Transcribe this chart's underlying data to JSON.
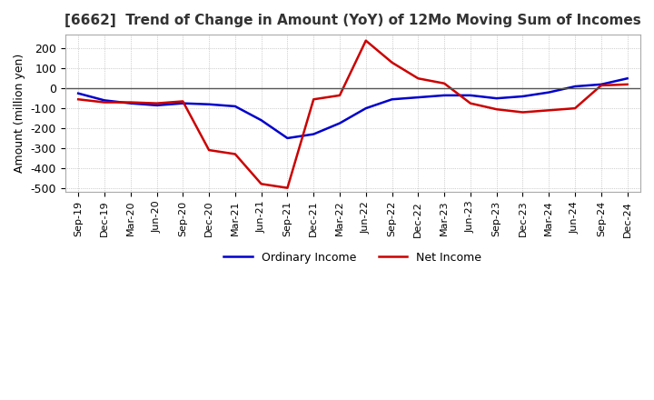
{
  "title": "[6662]  Trend of Change in Amount (YoY) of 12Mo Moving Sum of Incomes",
  "ylabel": "Amount (million yen)",
  "ylim": [
    -520,
    270
  ],
  "yticks": [
    -500,
    -400,
    -300,
    -200,
    -100,
    0,
    100,
    200
  ],
  "background_color": "#ffffff",
  "grid_color": "#aaaaaa",
  "title_fontsize": 11,
  "labels": [
    "Ordinary Income",
    "Net Income"
  ],
  "line_colors": [
    "#0000cc",
    "#cc0000"
  ],
  "x_labels": [
    "Sep-19",
    "Dec-19",
    "Mar-20",
    "Jun-20",
    "Sep-20",
    "Dec-20",
    "Mar-21",
    "Jun-21",
    "Sep-21",
    "Dec-21",
    "Mar-22",
    "Jun-22",
    "Sep-22",
    "Dec-22",
    "Mar-23",
    "Jun-23",
    "Sep-23",
    "Dec-23",
    "Mar-24",
    "Jun-24",
    "Sep-24",
    "Dec-24"
  ],
  "ordinary_income": [
    -25,
    -60,
    -75,
    -85,
    -75,
    -80,
    -90,
    -160,
    -250,
    -230,
    -175,
    -100,
    -55,
    -45,
    -35,
    -35,
    -50,
    -40,
    -20,
    10,
    20,
    50
  ],
  "net_income": [
    -55,
    -70,
    -70,
    -75,
    -65,
    -310,
    -330,
    -480,
    -500,
    -55,
    -35,
    240,
    130,
    50,
    25,
    -75,
    -105,
    -120,
    -110,
    -100,
    15,
    20
  ]
}
